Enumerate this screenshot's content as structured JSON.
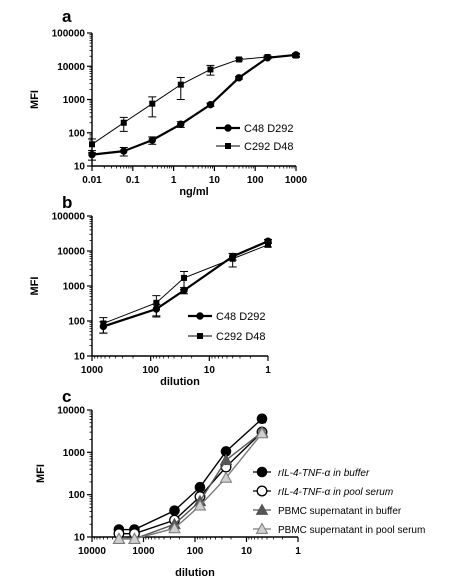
{
  "chart_data": [
    {
      "panel": "a",
      "type": "line",
      "xlabel": "ng/ml",
      "ylabel": "MFI",
      "xscale": "log",
      "yscale": "log",
      "xlim": [
        0.01,
        1000
      ],
      "ylim": [
        10,
        100000
      ],
      "x_ticks": [
        "0.01",
        "0.1",
        "1",
        "10",
        "100",
        "1000"
      ],
      "y_ticks": [
        "10",
        "100",
        "1000",
        "10000",
        "100000"
      ],
      "legend_placement": "center-right",
      "series": [
        {
          "name": "C48   D292",
          "marker": "circle",
          "color": "#000000",
          "line_width": "thick",
          "x": [
            0.01,
            0.06,
            0.3,
            1.5,
            8,
            40,
            200,
            1000
          ],
          "y": [
            22,
            28,
            60,
            180,
            700,
            4500,
            18000,
            22000
          ],
          "err": [
            7,
            8,
            15,
            35,
            80,
            400,
            1200,
            2500
          ]
        },
        {
          "name": "C292 D48",
          "marker": "square",
          "color": "#000000",
          "line_width": "thin",
          "x": [
            0.01,
            0.06,
            0.3,
            1.5,
            8,
            40,
            200,
            1000
          ],
          "y": [
            45,
            200,
            750,
            2800,
            8000,
            16000,
            19000,
            21000
          ],
          "err": [
            20,
            90,
            450,
            1800,
            2600,
            1500,
            1500,
            2500
          ]
        }
      ]
    },
    {
      "panel": "b",
      "type": "line",
      "xlabel": "dilution",
      "ylabel": "MFI",
      "xscale": "log",
      "yscale": "log",
      "x_reversed": true,
      "xlim": [
        1000,
        1
      ],
      "ylim": [
        10,
        100000
      ],
      "x_ticks": [
        "1000",
        "100",
        "10",
        "1"
      ],
      "y_ticks": [
        "10",
        "100",
        "1000",
        "10000",
        "100000"
      ],
      "legend_placement": "lower-right",
      "series": [
        {
          "name": "C48   D292",
          "marker": "circle",
          "color": "#000000",
          "line_width": "thick",
          "x": [
            640,
            80,
            27,
            4,
            1
          ],
          "y": [
            70,
            220,
            750,
            7000,
            19000
          ],
          "err": [
            25,
            80,
            150,
            1500,
            2500
          ]
        },
        {
          "name": "C292 D48",
          "marker": "square",
          "color": "#000000",
          "line_width": "thin",
          "x": [
            640,
            80,
            27,
            4,
            1
          ],
          "y": [
            85,
            330,
            1700,
            6000,
            15000
          ],
          "err": [
            40,
            200,
            900,
            2500,
            2000
          ]
        }
      ]
    },
    {
      "panel": "c",
      "type": "line",
      "xlabel": "dilution",
      "ylabel": "MFI",
      "xscale": "log",
      "yscale": "log",
      "x_reversed": true,
      "xlim": [
        10000,
        1
      ],
      "ylim": [
        10,
        10000
      ],
      "x_ticks": [
        "10000",
        "1000",
        "100",
        "10",
        "1"
      ],
      "y_ticks": [
        "10",
        "100",
        "1000",
        "10000"
      ],
      "legend_placement": "lower-right",
      "series": [
        {
          "name": "rIL-4-TNF-α in buffer",
          "italic": true,
          "marker": "circle-filled",
          "color": "#000000",
          "x": [
            3000,
            1500,
            250,
            80,
            25,
            5
          ],
          "y": [
            15,
            15,
            42,
            150,
            1050,
            6200
          ],
          "err": [
            0,
            0,
            0,
            0,
            0,
            1200
          ]
        },
        {
          "name": "rIL-4-TNF-α in pool serum",
          "italic": true,
          "marker": "circle-open",
          "color": "#000000",
          "x": [
            3000,
            1500,
            250,
            80,
            25,
            5
          ],
          "y": [
            12,
            12,
            25,
            90,
            450,
            3000
          ],
          "err": [
            0,
            0,
            0,
            0,
            0,
            500
          ]
        },
        {
          "name": "PBMC supernatant in buffer",
          "italic": false,
          "marker": "triangle-filled",
          "color": "#555555",
          "x": [
            3000,
            1500,
            250,
            80,
            25,
            5
          ],
          "y": [
            9,
            9,
            20,
            70,
            650,
            3000
          ],
          "err": [
            0,
            0,
            0,
            0,
            0,
            400
          ]
        },
        {
          "name": "PBMC supernatant in pool serum",
          "italic": false,
          "marker": "triangle-open",
          "color": "#7a7a7a",
          "x": [
            3000,
            1500,
            250,
            80,
            25,
            5
          ],
          "y": [
            9,
            9,
            16,
            55,
            250,
            2800
          ],
          "err": [
            0,
            0,
            0,
            0,
            0,
            400
          ]
        }
      ]
    }
  ]
}
